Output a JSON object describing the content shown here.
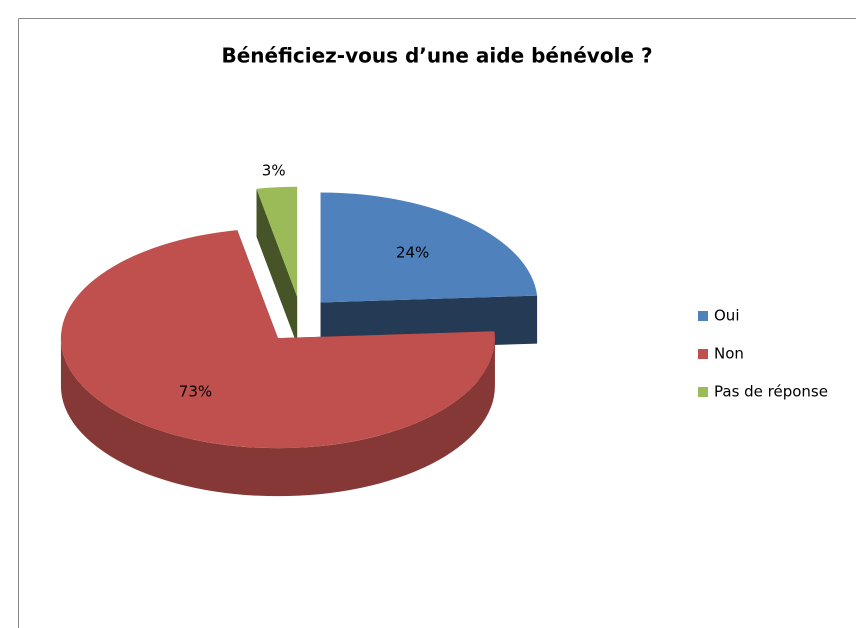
{
  "chart_data": {
    "type": "pie",
    "title": "Bénéficiez-vous d’une aide bénévole ?",
    "categories": [
      "Oui",
      "Non",
      "Pas de réponse"
    ],
    "values": [
      24,
      73,
      3
    ],
    "value_labels": [
      "24%",
      "73%",
      "3%"
    ],
    "colors": [
      "#4f81bd",
      "#c0504d",
      "#9bbb59"
    ],
    "legend": "right"
  }
}
